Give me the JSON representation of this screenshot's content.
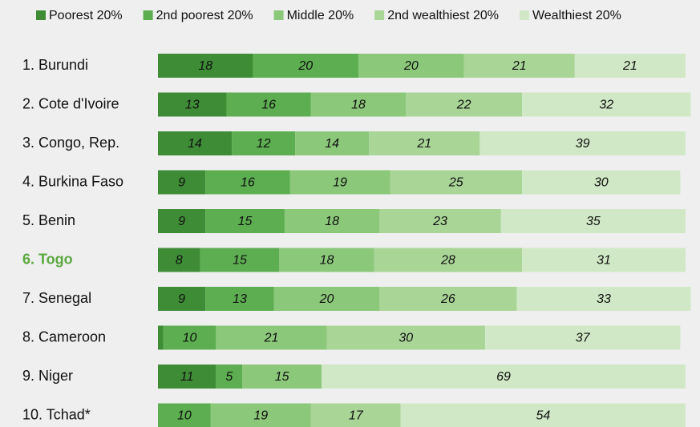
{
  "chart_data": {
    "type": "stacked-bar-horizontal",
    "categories": [
      "1. Burundi",
      "2. Cote d'Ivoire",
      "3. Congo, Rep.",
      "4. Burkina Faso",
      "5. Benin",
      "6. Togo",
      "7. Senegal",
      "8. Cameroon",
      "9. Niger",
      "10. Tchad*"
    ],
    "highlight_category": 5,
    "highlight_color": "#5aa83e",
    "series": [
      {
        "name": "Poorest 20%",
        "color": "#3e8d36",
        "values": [
          18,
          13,
          14,
          9,
          9,
          8,
          9,
          1,
          11,
          0
        ]
      },
      {
        "name": "2nd poorest 20%",
        "color": "#5cae50",
        "values": [
          20,
          16,
          12,
          16,
          15,
          15,
          13,
          10,
          5,
          10
        ]
      },
      {
        "name": "Middle 20%",
        "color": "#8bc87a",
        "values": [
          20,
          18,
          14,
          19,
          18,
          18,
          20,
          21,
          15,
          19
        ]
      },
      {
        "name": "2nd wealthiest 20%",
        "color": "#a9d597",
        "values": [
          21,
          22,
          21,
          25,
          23,
          28,
          26,
          30,
          0,
          17
        ]
      },
      {
        "name": "Wealthiest 20%",
        "color": "#d0e8c5",
        "values": [
          21,
          32,
          39,
          30,
          35,
          31,
          33,
          37,
          69,
          54
        ]
      }
    ]
  }
}
